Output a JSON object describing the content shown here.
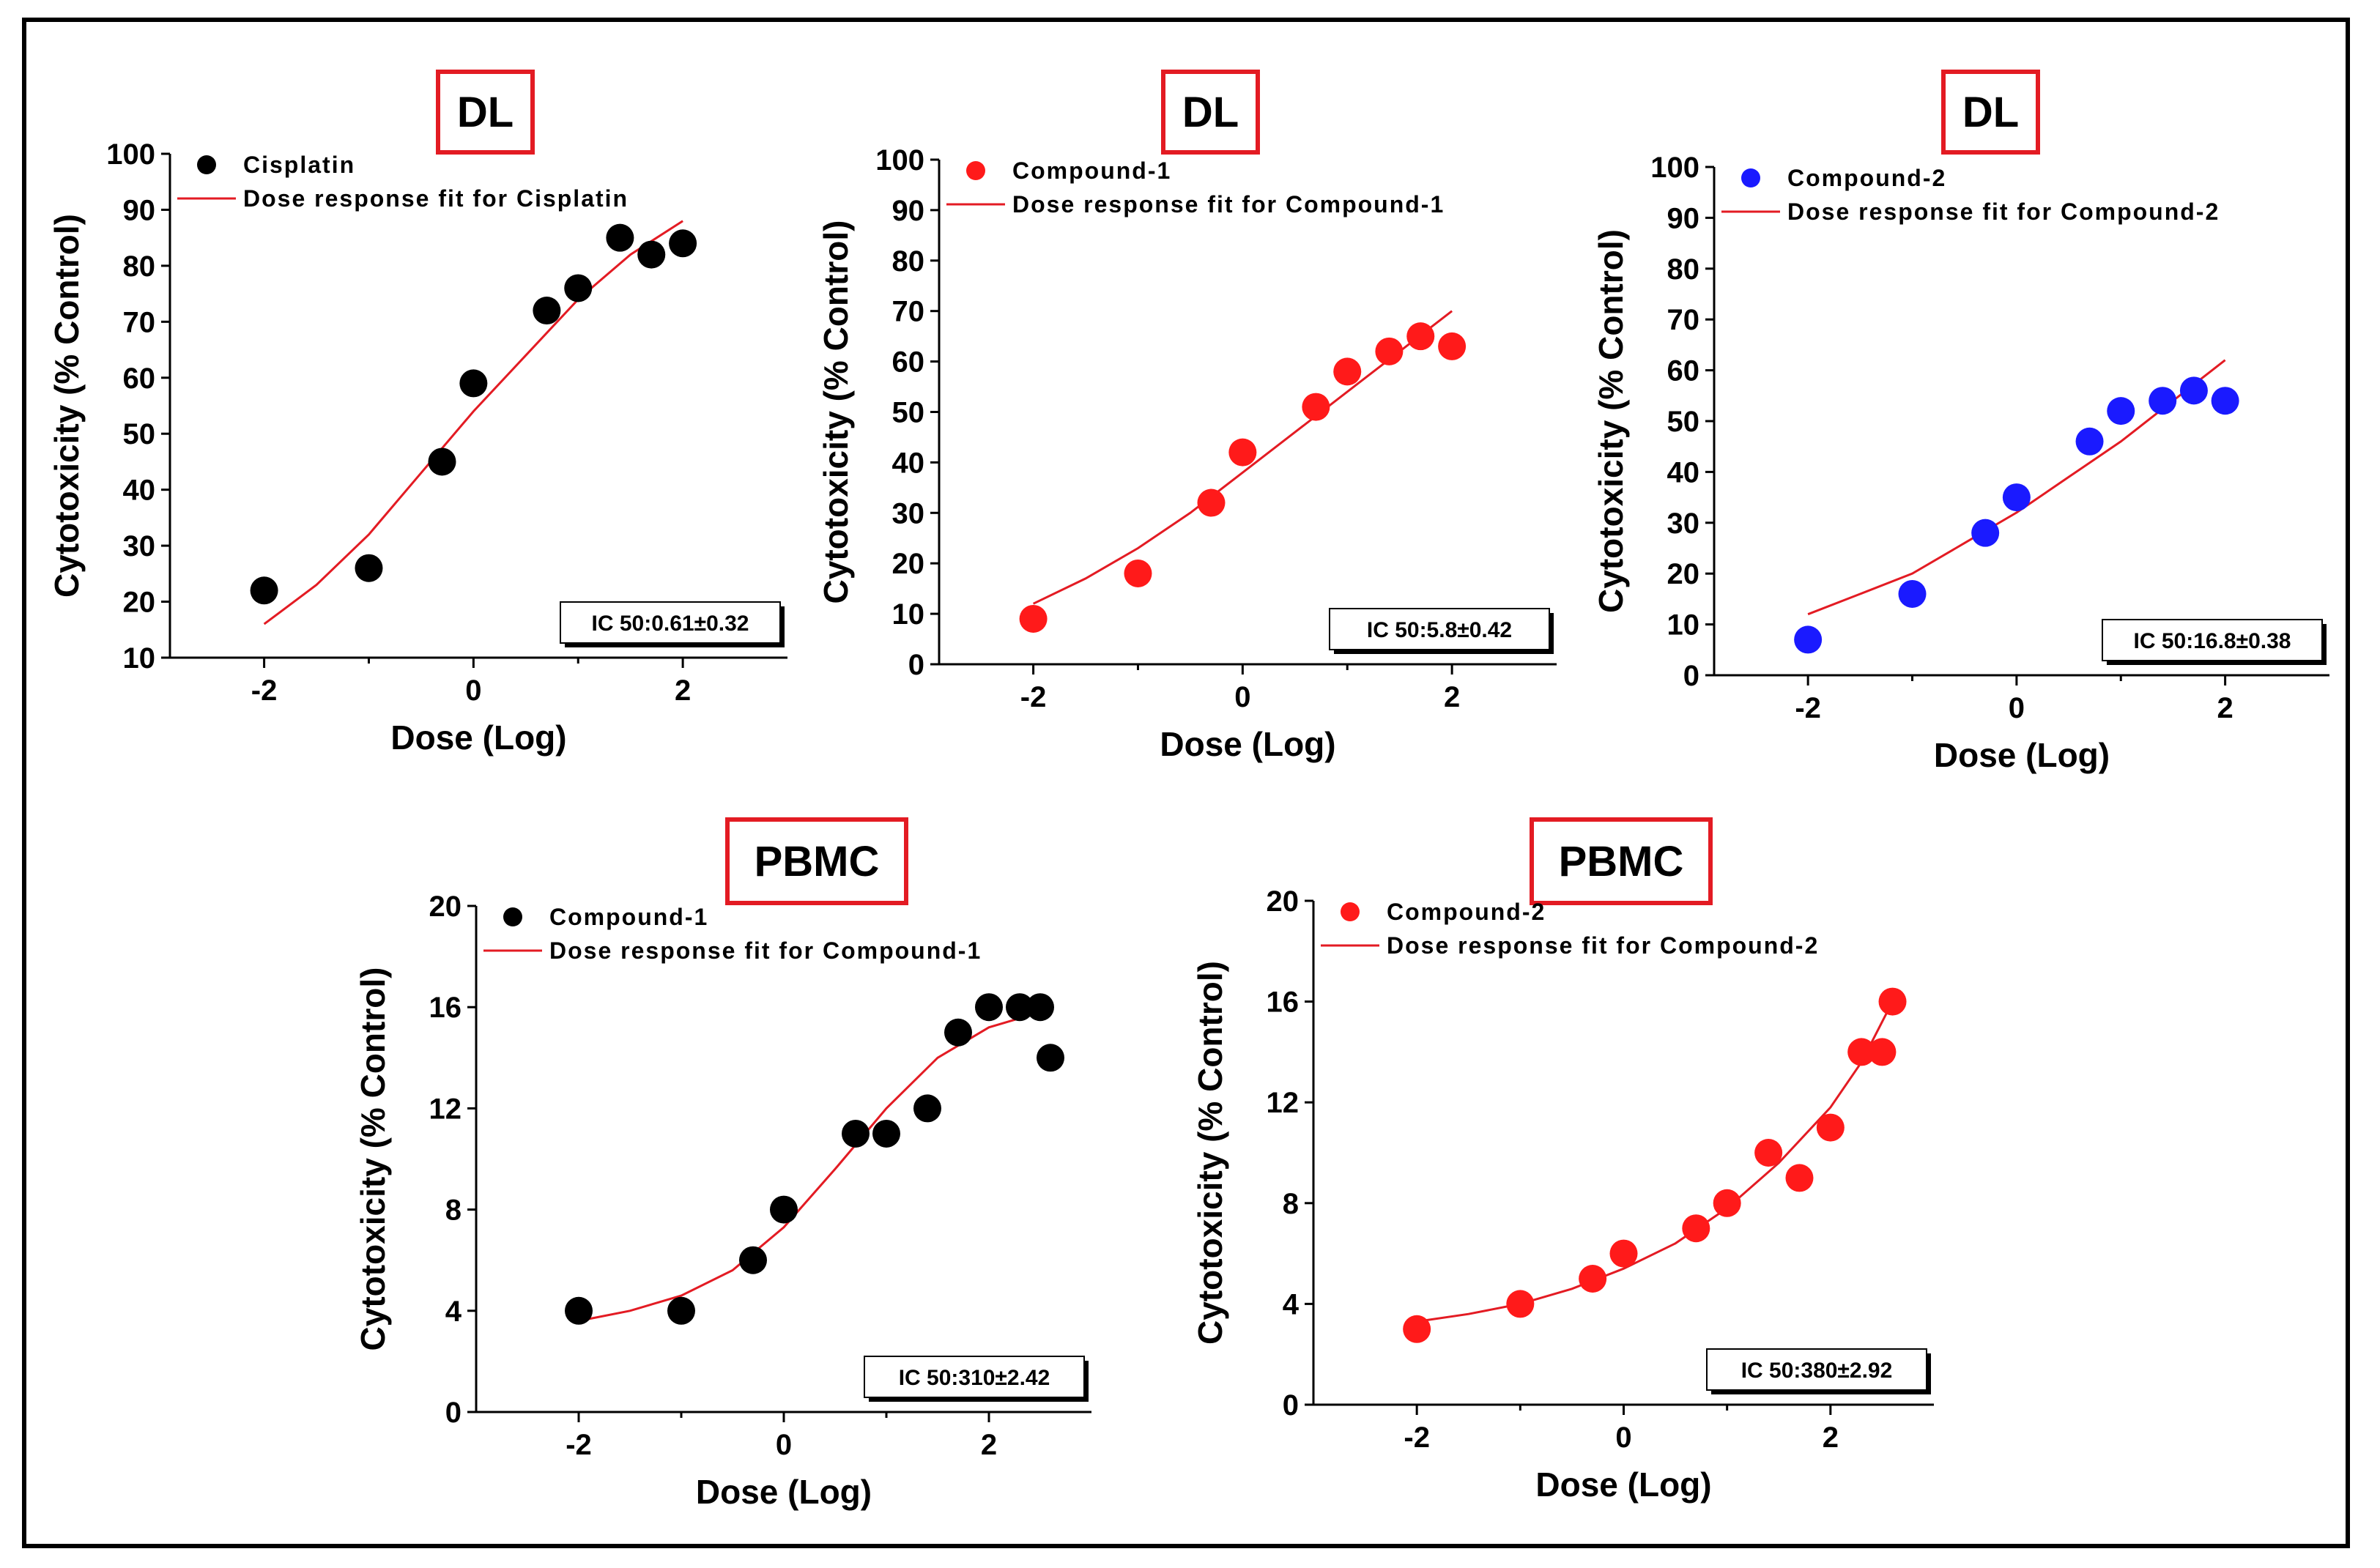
{
  "figure": {
    "border_color": "#000000",
    "title_border_color": "#e31b23",
    "fit_color": "#e31b23"
  },
  "chart_data": [
    {
      "type": "scatter",
      "panel_title": "DL",
      "xlabel": "Dose (Log)",
      "ylabel": "Cytotoxicity (% Control)",
      "xlim": [
        -2.9,
        3.0
      ],
      "ylim": [
        10,
        100
      ],
      "xticks": [
        -2,
        0,
        2
      ],
      "yticks": [
        10,
        20,
        30,
        40,
        50,
        60,
        70,
        80,
        90,
        100
      ],
      "series": [
        {
          "name": "Cisplatin",
          "color": "#000000",
          "x": [
            -2,
            -1,
            -0.3,
            0,
            0.7,
            1,
            1.4,
            1.7,
            2
          ],
          "y": [
            22,
            26,
            45,
            59,
            72,
            76,
            85,
            82,
            84
          ]
        }
      ],
      "fit": {
        "name": "Dose response fit for Cisplatin",
        "color": "#e31b23",
        "x": [
          -2,
          -1.5,
          -1,
          -0.5,
          0,
          0.5,
          1,
          1.5,
          2
        ],
        "y": [
          16,
          23,
          32,
          43,
          54,
          64,
          74,
          82,
          88
        ]
      },
      "annotation": "IC 50:0.61±0.32"
    },
    {
      "type": "scatter",
      "panel_title": "DL",
      "xlabel": "Dose (Log)",
      "ylabel": "Cytotoxicity (% Control)",
      "xlim": [
        -2.9,
        3.0
      ],
      "ylim": [
        0,
        100
      ],
      "xticks": [
        -2,
        0,
        2
      ],
      "yticks": [
        0,
        10,
        20,
        30,
        40,
        50,
        60,
        70,
        80,
        90,
        100
      ],
      "series": [
        {
          "name": "Compound-1",
          "color": "#ff1a1a",
          "x": [
            -2,
            -1,
            -0.3,
            0,
            0.7,
            1,
            1.4,
            1.7,
            2
          ],
          "y": [
            9,
            18,
            32,
            42,
            51,
            58,
            62,
            65,
            63
          ]
        }
      ],
      "fit": {
        "name": "Dose response fit for Compound-1",
        "color": "#e31b23",
        "x": [
          -2,
          -1.5,
          -1,
          -0.5,
          0,
          0.5,
          1,
          1.5,
          2
        ],
        "y": [
          12,
          17,
          23,
          30,
          38,
          46,
          54,
          62,
          70
        ]
      },
      "annotation": "IC 50:5.8±0.42"
    },
    {
      "type": "scatter",
      "panel_title": "DL",
      "xlabel": "Dose (Log)",
      "ylabel": "Cytotoxicity (% Control)",
      "xlim": [
        -2.9,
        3.0
      ],
      "ylim": [
        0,
        100
      ],
      "xticks": [
        -2,
        0,
        2
      ],
      "yticks": [
        0,
        10,
        20,
        30,
        40,
        50,
        60,
        70,
        80,
        90,
        100
      ],
      "series": [
        {
          "name": "Compound-2",
          "color": "#1a1aff",
          "x": [
            -2,
            -1,
            -0.3,
            0,
            0.7,
            1,
            1.4,
            1.7,
            2
          ],
          "y": [
            7,
            16,
            28,
            35,
            46,
            52,
            54,
            56,
            54
          ]
        }
      ],
      "fit": {
        "name": "Dose response fit for Compound-2",
        "color": "#e31b23",
        "x": [
          -2,
          -1.5,
          -1,
          -0.5,
          0,
          0.5,
          1,
          1.5,
          2
        ],
        "y": [
          12,
          16,
          20,
          26,
          32,
          39,
          46,
          54,
          62
        ]
      },
      "annotation": "IC 50:16.8±0.38"
    },
    {
      "type": "scatter",
      "panel_title": "PBMC",
      "xlabel": "Dose (Log)",
      "ylabel": "Cytotoxicity (% Control)",
      "xlim": [
        -3.0,
        3.0
      ],
      "ylim": [
        0,
        20
      ],
      "xticks": [
        -2,
        0,
        2
      ],
      "yticks": [
        0,
        4,
        8,
        12,
        16,
        20
      ],
      "series": [
        {
          "name": "Compound-1",
          "color": "#000000",
          "x": [
            -2,
            -1,
            -0.3,
            0,
            0.7,
            1,
            1.4,
            1.7,
            2,
            2.3,
            2.5,
            2.6
          ],
          "y": [
            4,
            4,
            6,
            8,
            11,
            11,
            12,
            15,
            16,
            16,
            16,
            14
          ]
        }
      ],
      "fit": {
        "name": "Dose response fit for Compound-1",
        "color": "#e31b23",
        "x": [
          -2,
          -1.5,
          -1,
          -0.5,
          0,
          0.5,
          1,
          1.5,
          2,
          2.5
        ],
        "y": [
          3.6,
          4.0,
          4.6,
          5.6,
          7.3,
          9.6,
          12.0,
          14.0,
          15.2,
          15.8
        ]
      },
      "annotation": "IC 50:310±2.42"
    },
    {
      "type": "scatter",
      "panel_title": "PBMC",
      "xlabel": "Dose (Log)",
      "ylabel": "Cytotoxicity (% Control)",
      "xlim": [
        -3.0,
        3.0
      ],
      "ylim": [
        0,
        20
      ],
      "xticks": [
        -2,
        0,
        2
      ],
      "yticks": [
        0,
        4,
        8,
        12,
        16,
        20
      ],
      "series": [
        {
          "name": "Compound-2",
          "color": "#ff1a1a",
          "x": [
            -2,
            -1,
            -0.3,
            0,
            0.7,
            1,
            1.4,
            1.7,
            2,
            2.3,
            2.5,
            2.6
          ],
          "y": [
            3,
            4,
            5,
            6,
            7,
            8,
            10,
            9,
            11,
            14,
            14,
            16
          ]
        }
      ],
      "fit": {
        "name": "Dose response fit for Compound-2",
        "color": "#e31b23",
        "x": [
          -2,
          -1.5,
          -1,
          -0.5,
          0,
          0.5,
          1,
          1.5,
          2,
          2.3,
          2.6
        ],
        "y": [
          3.3,
          3.6,
          4.0,
          4.6,
          5.4,
          6.4,
          7.8,
          9.6,
          11.8,
          13.6,
          16.0
        ]
      },
      "annotation": "IC 50:380±2.92"
    }
  ]
}
